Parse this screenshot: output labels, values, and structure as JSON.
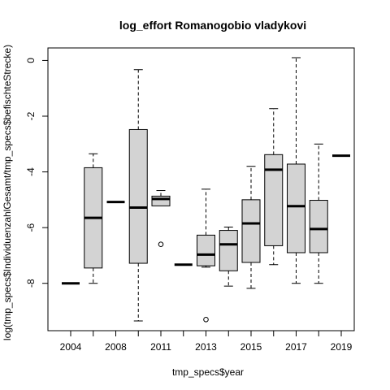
{
  "chart_data": {
    "type": "boxplot",
    "title": "log_effort Romanogobio vladykovi",
    "xlabel": "tmp_specs$year",
    "ylabel": "log(tmp_specs$IndividuenzahlGesamt/tmp_specs$befischteStrecke)",
    "ylim": [
      -9.7,
      0.45
    ],
    "y_ticks": [
      0,
      -2,
      -4,
      -6,
      -8
    ],
    "x_tick_labels_shown": [
      "2004",
      "2008",
      "2011",
      "2013",
      "2015",
      "2017",
      "2019"
    ],
    "boxes": [
      {
        "position": 1,
        "year": "2004",
        "lower_whisker": -8.0,
        "q1": -8.0,
        "median": -8.0,
        "q3": -8.0,
        "upper_whisker": -8.0,
        "outliers": []
      },
      {
        "position": 2,
        "year": "",
        "lower_whisker": -8.0,
        "q1": -7.45,
        "median": -5.65,
        "q3": -3.85,
        "upper_whisker": -3.35,
        "outliers": []
      },
      {
        "position": 3,
        "year": "2008",
        "lower_whisker": -5.08,
        "q1": -5.08,
        "median": -5.08,
        "q3": -5.08,
        "upper_whisker": -5.08,
        "outliers": []
      },
      {
        "position": 4,
        "year": "",
        "lower_whisker": -9.35,
        "q1": -7.28,
        "median": -5.28,
        "q3": -2.48,
        "upper_whisker": -0.33,
        "outliers": []
      },
      {
        "position": 5,
        "year": "2011",
        "lower_whisker": -5.22,
        "q1": -5.22,
        "median": -4.97,
        "q3": -4.87,
        "upper_whisker": -4.67,
        "outliers": [
          -6.6
        ]
      },
      {
        "position": 6,
        "year": "",
        "lower_whisker": -7.33,
        "q1": -7.33,
        "median": -7.33,
        "q3": -7.33,
        "upper_whisker": -7.33,
        "outliers": []
      },
      {
        "position": 7,
        "year": "2013",
        "lower_whisker": -7.42,
        "q1": -7.37,
        "median": -6.97,
        "q3": -6.27,
        "upper_whisker": -4.62,
        "outliers": [
          -9.3
        ]
      },
      {
        "position": 8,
        "year": "",
        "lower_whisker": -8.1,
        "q1": -7.55,
        "median": -6.6,
        "q3": -6.1,
        "upper_whisker": -5.98,
        "outliers": []
      },
      {
        "position": 9,
        "year": "2015",
        "lower_whisker": -8.18,
        "q1": -7.25,
        "median": -5.85,
        "q3": -5.0,
        "upper_whisker": -3.8,
        "outliers": []
      },
      {
        "position": 10,
        "year": "",
        "lower_whisker": -7.33,
        "q1": -6.65,
        "median": -3.92,
        "q3": -3.38,
        "upper_whisker": -1.73,
        "outliers": []
      },
      {
        "position": 11,
        "year": "2017",
        "lower_whisker": -8.0,
        "q1": -6.9,
        "median": -5.23,
        "q3": -3.72,
        "upper_whisker": 0.1,
        "outliers": []
      },
      {
        "position": 12,
        "year": "",
        "lower_whisker": -8.0,
        "q1": -6.9,
        "median": -6.05,
        "q3": -5.02,
        "upper_whisker": -3.0,
        "outliers": []
      },
      {
        "position": 13,
        "year": "2019",
        "lower_whisker": -3.42,
        "q1": -3.42,
        "median": -3.42,
        "q3": -3.42,
        "upper_whisker": -3.42,
        "outliers": []
      }
    ],
    "box_fill": "#d3d3d3",
    "line_color": "#000000",
    "grid": false,
    "legend": "none"
  }
}
